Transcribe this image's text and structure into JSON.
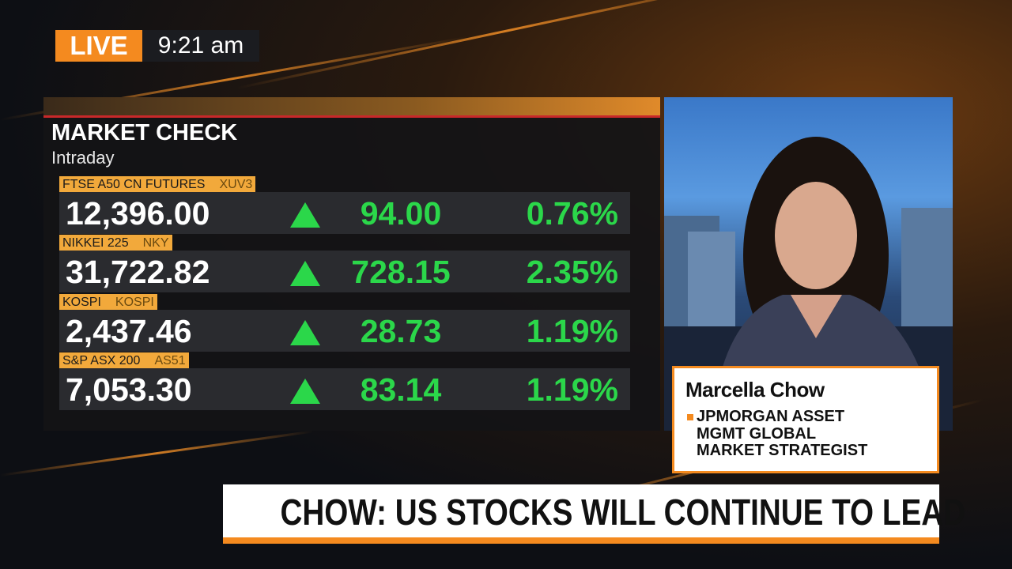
{
  "live": {
    "label": "LIVE",
    "time": "9:21 am"
  },
  "market_check": {
    "title": "MARKET CHECK",
    "subtitle": "Intraday",
    "rows": [
      {
        "name": "FTSE A50 CN FUTURES",
        "ticker": "XUV3",
        "price": "12,396.00",
        "change": "94.00",
        "percent": "0.76%"
      },
      {
        "name": "NIKKEI 225",
        "ticker": "NKY",
        "price": "31,722.82",
        "change": "728.15",
        "percent": "2.35%"
      },
      {
        "name": "KOSPI",
        "ticker": "KOSPI",
        "price": "2,437.46",
        "change": "28.73",
        "percent": "1.19%"
      },
      {
        "name": "S&P ASX 200",
        "ticker": "AS51",
        "price": "7,053.30",
        "change": "83.14",
        "percent": "1.19%"
      }
    ]
  },
  "guest": {
    "name": "Marcella Chow",
    "title_lines": [
      "JPMORGAN ASSET",
      "MGMT GLOBAL",
      "MARKET STRATEGIST"
    ]
  },
  "headline": "CHOW: US STOCKS WILL CONTINUE TO LEAD"
}
